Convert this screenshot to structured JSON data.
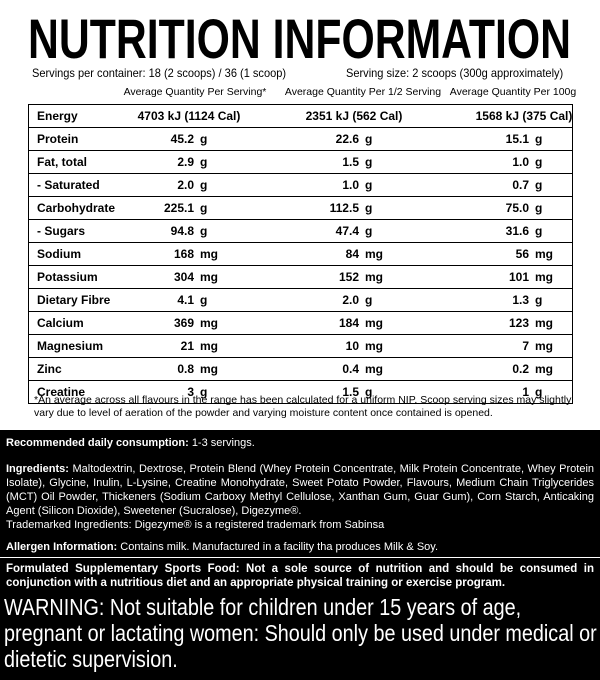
{
  "header": {
    "title": "NUTRITION INFORMATION",
    "servings": "Servings per container: 18 (2 scoops) / 36 (1 scoop)",
    "serving_size": "Serving size: 2 scoops (300g approximately)"
  },
  "table": {
    "columns": [
      "Average Quantity Per Serving*",
      "Average Quantity Per 1/2 Serving",
      "Average Quantity Per 100g"
    ],
    "rows": [
      [
        "Energy",
        "4703 kJ (1124 Cal)",
        "",
        "2351 kJ (562 Cal)",
        "",
        "1568 kJ (375 Cal)",
        ""
      ],
      [
        "Protein",
        "45.2",
        "g",
        "22.6",
        "g",
        "15.1",
        "g"
      ],
      [
        "Fat, total",
        "2.9",
        "g",
        "1.5",
        "g",
        "1.0",
        "g"
      ],
      [
        "- Saturated",
        "2.0",
        "g",
        "1.0",
        "g",
        "0.7",
        "g"
      ],
      [
        "Carbohydrate",
        "225.1",
        "g",
        "112.5",
        "g",
        "75.0",
        "g"
      ],
      [
        "- Sugars",
        "94.8",
        "g",
        "47.4",
        "g",
        "31.6",
        "g"
      ],
      [
        "Sodium",
        "168",
        "mg",
        "84",
        "mg",
        "56",
        "mg"
      ],
      [
        "Potassium",
        "304",
        "mg",
        "152",
        "mg",
        "101",
        "mg"
      ],
      [
        "Dietary Fibre",
        "4.1",
        "g",
        "2.0",
        "g",
        "1.3",
        "g"
      ],
      [
        "Calcium",
        "369",
        "mg",
        "184",
        "mg",
        "123",
        "mg"
      ],
      [
        "Magnesium",
        "21",
        "mg",
        "10",
        "mg",
        "7",
        "mg"
      ],
      [
        "Zinc",
        "0.8",
        "mg",
        "0.4",
        "mg",
        "0.2",
        "mg"
      ],
      [
        "Creatine",
        "3",
        "g",
        "1.5",
        "g",
        "1",
        "g"
      ]
    ],
    "footnote": "*An average across all flavours in the range has been calculated for a uniform NIP. Scoop serving sizes may slightly vary due to level of aeration of the powder and varying moisture content once contained is opened."
  },
  "recommended": {
    "label": "Recommended daily consumption:",
    "text": "1-3 servings."
  },
  "ingredients": {
    "label": "Ingredients:",
    "text": "Maltodextrin, Dextrose, Protein Blend (Whey Protein Concentrate, Milk Protein Concentrate, Whey Protein Isolate), Glycine, Inulin, L-Lysine, Creatine Monohydrate, Sweet Potato Powder, Flavours, Medium Chain Triglycerides (MCT) Oil Powder, Thickeners (Sodium Carboxy Methyl Cellulose, Xanthan Gum, Guar Gum), Corn Starch, Anticaking Agent (Silicon Dioxide), Sweetener (Sucralose), Digezyme®.",
    "trademark": "Trademarked Ingredients: Digezyme® is a registered trademark from Sabinsa"
  },
  "allergen": {
    "label": "Allergen Information:",
    "text": "Contains milk. Manufactured in a facility tha produces Milk & Soy."
  },
  "formulated": "Formulated Supplementary Sports Food:  Not a sole source of nutrition and should be consumed in conjunction with a nutritious diet and an appropriate physical training or exercise program.",
  "warning": "WARNING: Not suitable for children under 15 years of age, pregnant or lactating women: Should only be used under medical or dietetic supervision."
}
